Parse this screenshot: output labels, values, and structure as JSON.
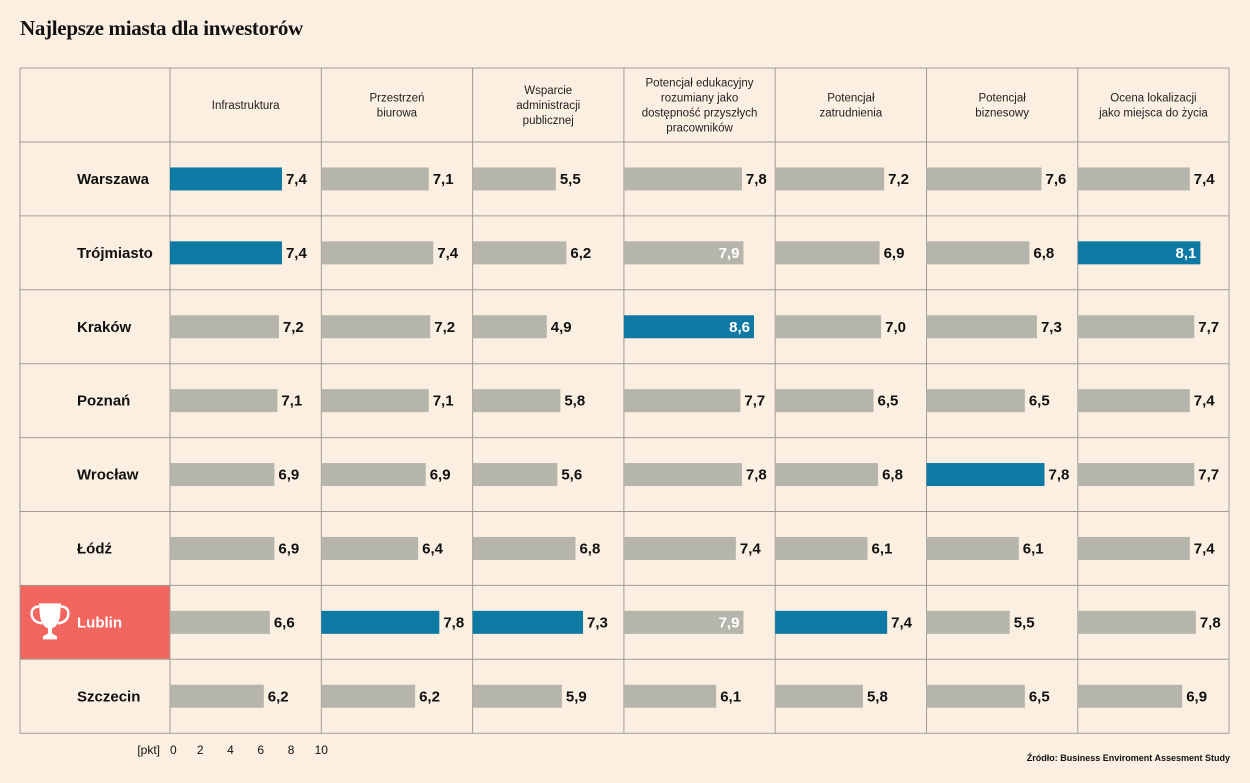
{
  "title": "Najlepsze miasta dla inwestorów",
  "source": "Źródło: Business Enviroment Assesment Study",
  "colors": {
    "background": "#fbefe2",
    "bar_default": "#b6b5ac",
    "bar_highlight": "#0e79a3",
    "winner_cell": "#f26660",
    "grid": "#a09d98"
  },
  "icons": {
    "winner": "trophy-icon"
  },
  "chart_data": {
    "type": "bar",
    "orientation": "horizontal",
    "unit_label": "[pkt]",
    "xlim": [
      0,
      10
    ],
    "xticks": [
      "0",
      "2",
      "4",
      "6",
      "8",
      "10"
    ],
    "columns": [
      [
        "Infrastruktura"
      ],
      [
        "Przestrzeń",
        "biurowa"
      ],
      [
        "Wsparcie",
        "administracji",
        "publicznej"
      ],
      [
        "Potencjał edukacyjny",
        "rozumiany jako",
        "dostępność przyszłych",
        "pracowników"
      ],
      [
        "Potencjał",
        "zatrudnienia"
      ],
      [
        "Potencjał",
        "biznesowy"
      ],
      [
        "Ocena lokalizacji",
        "jako miejsca do życia"
      ]
    ],
    "cities": [
      "Warszawa",
      "Trójmiasto",
      "Kraków",
      "Poznań",
      "Wrocław",
      "Łódź",
      "Lublin",
      "Szczecin"
    ],
    "winner": "Lublin",
    "values": [
      [
        7.4,
        7.1,
        5.5,
        7.8,
        7.2,
        7.6,
        7.4
      ],
      [
        7.4,
        7.4,
        6.2,
        7.9,
        6.9,
        6.8,
        8.1
      ],
      [
        7.2,
        7.2,
        4.9,
        8.6,
        7.0,
        7.3,
        7.7
      ],
      [
        7.1,
        7.1,
        5.8,
        7.7,
        6.5,
        6.5,
        7.4
      ],
      [
        6.9,
        6.9,
        5.6,
        7.8,
        6.8,
        7.8,
        7.7
      ],
      [
        6.9,
        6.4,
        6.8,
        7.4,
        6.1,
        6.1,
        7.4
      ],
      [
        6.6,
        7.8,
        7.3,
        7.9,
        7.4,
        5.5,
        7.8
      ],
      [
        6.2,
        6.2,
        5.9,
        6.1,
        5.8,
        6.5,
        6.9
      ]
    ],
    "labels": [
      [
        "7,4",
        "7,1",
        "5,5",
        "7,8",
        "7,2",
        "7,6",
        "7,4"
      ],
      [
        "7,4",
        "7,4",
        "6,2",
        "7,9",
        "6,9",
        "6,8",
        "8,1"
      ],
      [
        "7,2",
        "7,2",
        "4,9",
        "8,6",
        "7,0",
        "7,3",
        "7,7"
      ],
      [
        "7,1",
        "7,1",
        "5,8",
        "7,7",
        "6,5",
        "6,5",
        "7,4"
      ],
      [
        "6,9",
        "6,9",
        "5,6",
        "7,8",
        "6,8",
        "7,8",
        "7,7"
      ],
      [
        "6,9",
        "6,4",
        "6,8",
        "7,4",
        "6,1",
        "6,1",
        "7,4"
      ],
      [
        "6,6",
        "7,8",
        "7,3",
        "7,9",
        "7,4",
        "5,5",
        "7,8"
      ],
      [
        "6,2",
        "6,2",
        "5,9",
        "6,1",
        "5,8",
        "6,5",
        "6,9"
      ]
    ],
    "highlighted": [
      [
        true,
        false,
        false,
        false,
        false,
        false,
        false
      ],
      [
        true,
        false,
        false,
        false,
        false,
        false,
        true
      ],
      [
        false,
        false,
        false,
        true,
        false,
        false,
        false
      ],
      [
        false,
        false,
        false,
        false,
        false,
        false,
        false
      ],
      [
        false,
        false,
        false,
        false,
        false,
        true,
        false
      ],
      [
        false,
        false,
        false,
        false,
        false,
        false,
        false
      ],
      [
        false,
        true,
        true,
        false,
        true,
        false,
        false
      ],
      [
        false,
        false,
        false,
        false,
        false,
        false,
        false
      ]
    ]
  }
}
